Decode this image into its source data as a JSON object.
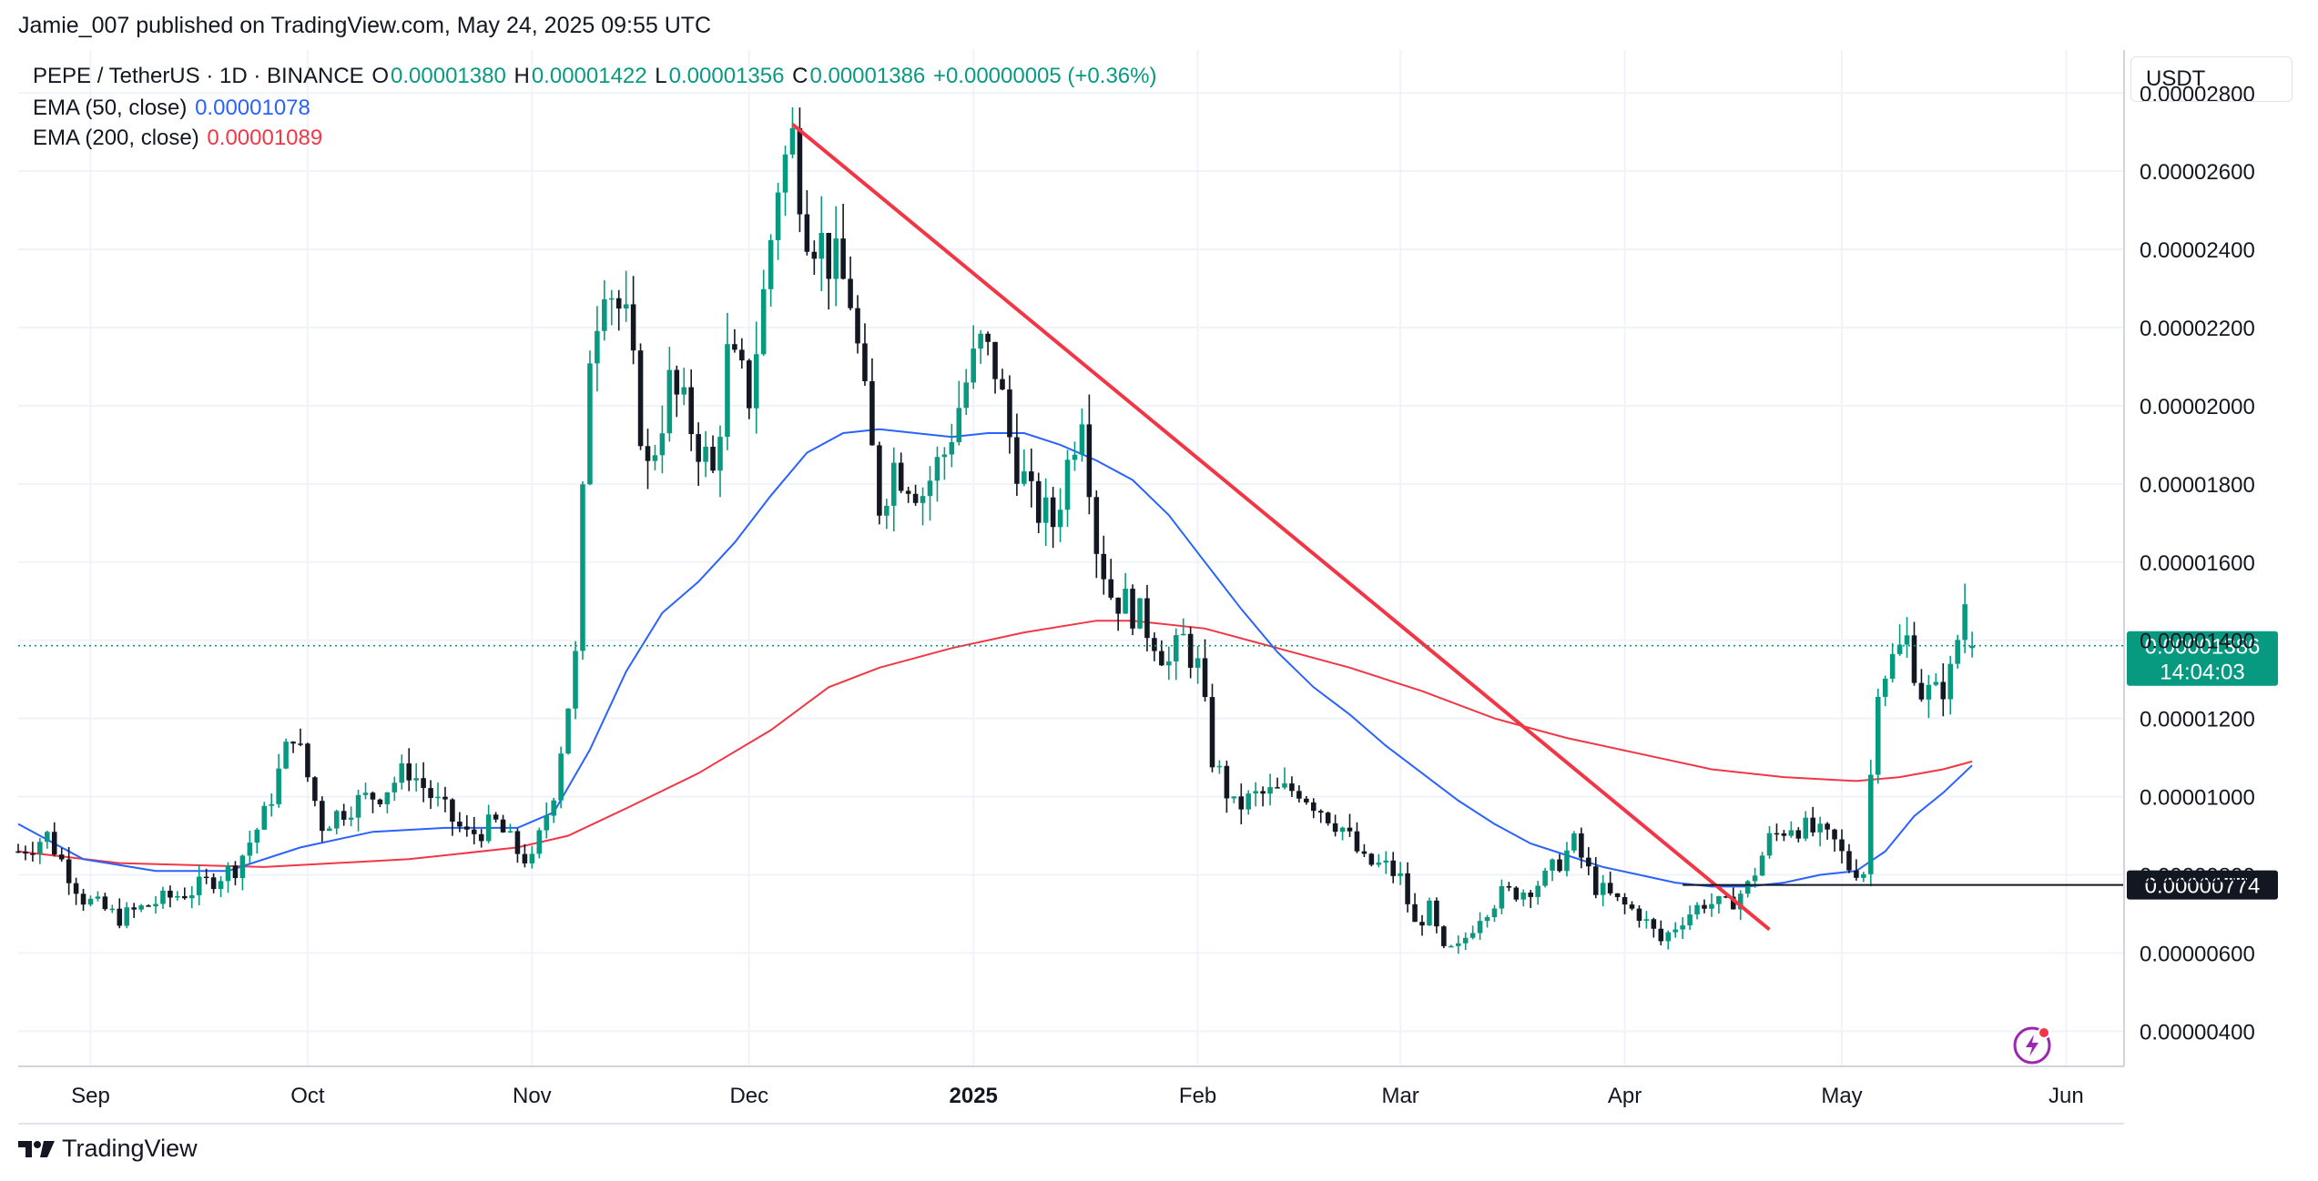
{
  "header": {
    "published": "Jamie_007 published on TradingView.com, May 24, 2025 09:55 UTC"
  },
  "legend": {
    "symbol": "PEPE / TetherUS · 1D · BINANCE",
    "o_label": "O",
    "o_value": "0.00001380",
    "h_label": "H",
    "h_value": "0.00001422",
    "l_label": "L",
    "l_value": "0.00001356",
    "c_label": "C",
    "c_value": "0.00001386",
    "change": "+0.00000005 (+0.36%)",
    "ema50_label": "EMA (50, close)",
    "ema50_value": "0.00001078",
    "ema200_label": "EMA (200, close)",
    "ema200_value": "0.00001089"
  },
  "currency": "USDT",
  "price_tag": {
    "value": "0.00001386",
    "countdown": "14:04:03"
  },
  "level_tag": {
    "value": "0.00000774"
  },
  "footer": {
    "brand": "TradingView"
  },
  "colors": {
    "up": "#089981",
    "down": "#131722",
    "ema50": "#2962ff",
    "ema200": "#f23645",
    "trendline": "#f23645",
    "grid": "#f0f3fa"
  },
  "chart_data": {
    "type": "candlestick",
    "symbol": "PEPE / TetherUS",
    "interval": "1D",
    "ylim": [
      3.1e-06,
      2.91e-05
    ],
    "y_ticks": [
      "0.00000400",
      "0.00000600",
      "0.00000800",
      "0.00001000",
      "0.00001200",
      "0.00001400",
      "0.00001600",
      "0.00001800",
      "0.00002000",
      "0.00002200",
      "0.00002400",
      "0.00002600",
      "0.00002800"
    ],
    "x_ticks": [
      {
        "label": "Sep",
        "day": 16
      },
      {
        "label": "Oct",
        "day": 46
      },
      {
        "label": "Nov",
        "day": 77
      },
      {
        "label": "Dec",
        "day": 107
      },
      {
        "label": "2025",
        "day": 138
      },
      {
        "label": "Feb",
        "day": 169
      },
      {
        "label": "Mar",
        "day": 197
      },
      {
        "label": "Apr",
        "day": 228
      },
      {
        "label": "May",
        "day": 258
      },
      {
        "label": "Jun",
        "day": 289
      }
    ],
    "x_range_days": [
      6,
      297
    ],
    "anchors": [
      [
        6,
        8.6e-06
      ],
      [
        10,
        9e-06
      ],
      [
        15,
        7.4e-06
      ],
      [
        20,
        6.9e-06
      ],
      [
        25,
        7.3e-06
      ],
      [
        30,
        7.6e-06
      ],
      [
        36,
        8.2e-06
      ],
      [
        40,
        9.5e-06
      ],
      [
        44,
        1.17e-05
      ],
      [
        48,
        9.3e-06
      ],
      [
        52,
        9.8e-06
      ],
      [
        56,
        1.01e-05
      ],
      [
        60,
        1.07e-05
      ],
      [
        64,
        9.8e-06
      ],
      [
        68,
        9e-06
      ],
      [
        72,
        9.3e-06
      ],
      [
        75,
        8.6e-06
      ],
      [
        77,
        8.3e-06
      ],
      [
        80,
        1.02e-05
      ],
      [
        83,
        1.35e-05
      ],
      [
        85,
        2.15e-05
      ],
      [
        87,
        2.35e-05
      ],
      [
        90,
        2.2e-05
      ],
      [
        93,
        1.83e-05
      ],
      [
        96,
        2.05e-05
      ],
      [
        99,
        1.95e-05
      ],
      [
        102,
        1.82e-05
      ],
      [
        104,
        2.12e-05
      ],
      [
        107,
        2.03e-05
      ],
      [
        109,
        2.28e-05
      ],
      [
        111,
        2.58e-05
      ],
      [
        113,
        2.68e-05
      ],
      [
        115,
        2.48e-05
      ],
      [
        118,
        2.38e-05
      ],
      [
        121,
        2.28e-05
      ],
      [
        123,
        2e-05
      ],
      [
        125,
        1.75e-05
      ],
      [
        127,
        1.85e-05
      ],
      [
        129,
        1.82e-05
      ],
      [
        131,
        1.78e-05
      ],
      [
        134,
        1.88e-05
      ],
      [
        137,
        2.06e-05
      ],
      [
        139,
        2.15e-05
      ],
      [
        141,
        2.1e-05
      ],
      [
        143,
        1.92e-05
      ],
      [
        146,
        1.75e-05
      ],
      [
        149,
        1.7e-05
      ],
      [
        151,
        1.85e-05
      ],
      [
        153,
        2.01e-05
      ],
      [
        155,
        1.65e-05
      ],
      [
        157,
        1.52e-05
      ],
      [
        160,
        1.48e-05
      ],
      [
        163,
        1.41e-05
      ],
      [
        165,
        1.34e-05
      ],
      [
        167,
        1.4e-05
      ],
      [
        169,
        1.33e-05
      ],
      [
        171,
        1.1e-05
      ],
      [
        174,
        9.7e-06
      ],
      [
        177,
        1e-05
      ],
      [
        180,
        1.01e-05
      ],
      [
        183,
        1.02e-05
      ],
      [
        186,
        9.7e-06
      ],
      [
        189,
        9.2e-06
      ],
      [
        192,
        8.3e-06
      ],
      [
        195,
        8.2e-06
      ],
      [
        197,
        7.9e-06
      ],
      [
        199,
        6.7e-06
      ],
      [
        201,
        7.1e-06
      ],
      [
        203,
        6e-06
      ],
      [
        205,
        6.1e-06
      ],
      [
        208,
        7e-06
      ],
      [
        211,
        7.5e-06
      ],
      [
        214,
        7.6e-06
      ],
      [
        217,
        7.9e-06
      ],
      [
        221,
        8.8e-06
      ],
      [
        224,
        7.7e-06
      ],
      [
        227,
        7.3e-06
      ],
      [
        230,
        7e-06
      ],
      [
        233,
        6.3e-06
      ],
      [
        236,
        6.9e-06
      ],
      [
        239,
        7.3e-06
      ],
      [
        242,
        7.2e-06
      ],
      [
        245,
        7.7e-06
      ],
      [
        248,
        8.9e-06
      ],
      [
        251,
        9.3e-06
      ],
      [
        254,
        9.1e-06
      ],
      [
        257,
        8.8e-06
      ],
      [
        259,
        8.2e-06
      ],
      [
        261,
        8.1e-06
      ],
      [
        263,
        1.3e-05
      ],
      [
        265,
        1.35e-05
      ],
      [
        267,
        1.4e-05
      ],
      [
        269,
        1.27e-05
      ],
      [
        271,
        1.26e-05
      ],
      [
        273,
        1.31e-05
      ],
      [
        275,
        1.5e-05
      ],
      [
        276,
        1.38e-05
      ]
    ],
    "ema50": [
      [
        6,
        9.3e-06
      ],
      [
        15,
        8.4e-06
      ],
      [
        25,
        8.1e-06
      ],
      [
        35,
        8.1e-06
      ],
      [
        45,
        8.7e-06
      ],
      [
        55,
        9.1e-06
      ],
      [
        65,
        9.2e-06
      ],
      [
        75,
        9.2e-06
      ],
      [
        80,
        9.6e-06
      ],
      [
        85,
        1.12e-05
      ],
      [
        90,
        1.32e-05
      ],
      [
        95,
        1.47e-05
      ],
      [
        100,
        1.55e-05
      ],
      [
        105,
        1.65e-05
      ],
      [
        110,
        1.77e-05
      ],
      [
        115,
        1.88e-05
      ],
      [
        120,
        1.93e-05
      ],
      [
        125,
        1.94e-05
      ],
      [
        130,
        1.93e-05
      ],
      [
        135,
        1.92e-05
      ],
      [
        140,
        1.93e-05
      ],
      [
        145,
        1.93e-05
      ],
      [
        150,
        1.9e-05
      ],
      [
        155,
        1.86e-05
      ],
      [
        160,
        1.81e-05
      ],
      [
        165,
        1.72e-05
      ],
      [
        170,
        1.6e-05
      ],
      [
        175,
        1.48e-05
      ],
      [
        180,
        1.37e-05
      ],
      [
        185,
        1.28e-05
      ],
      [
        190,
        1.21e-05
      ],
      [
        195,
        1.13e-05
      ],
      [
        200,
        1.06e-05
      ],
      [
        205,
        9.9e-06
      ],
      [
        210,
        9.3e-06
      ],
      [
        215,
        8.8e-06
      ],
      [
        220,
        8.5e-06
      ],
      [
        225,
        8.2e-06
      ],
      [
        230,
        8e-06
      ],
      [
        235,
        7.8e-06
      ],
      [
        240,
        7.7e-06
      ],
      [
        245,
        7.7e-06
      ],
      [
        250,
        7.8e-06
      ],
      [
        255,
        8e-06
      ],
      [
        260,
        8.1e-06
      ],
      [
        264,
        8.6e-06
      ],
      [
        268,
        9.5e-06
      ],
      [
        272,
        1.01e-05
      ],
      [
        276,
        1.08e-05
      ]
    ],
    "ema200": [
      [
        6,
        8.6e-06
      ],
      [
        20,
        8.3e-06
      ],
      [
        40,
        8.2e-06
      ],
      [
        60,
        8.4e-06
      ],
      [
        75,
        8.7e-06
      ],
      [
        82,
        9e-06
      ],
      [
        90,
        9.7e-06
      ],
      [
        100,
        1.06e-05
      ],
      [
        110,
        1.17e-05
      ],
      [
        118,
        1.28e-05
      ],
      [
        125,
        1.33e-05
      ],
      [
        135,
        1.38e-05
      ],
      [
        145,
        1.42e-05
      ],
      [
        155,
        1.45e-05
      ],
      [
        160,
        1.45e-05
      ],
      [
        170,
        1.43e-05
      ],
      [
        180,
        1.38e-05
      ],
      [
        190,
        1.33e-05
      ],
      [
        200,
        1.27e-05
      ],
      [
        210,
        1.2e-05
      ],
      [
        220,
        1.15e-05
      ],
      [
        230,
        1.11e-05
      ],
      [
        240,
        1.07e-05
      ],
      [
        250,
        1.05e-05
      ],
      [
        260,
        1.04e-05
      ],
      [
        266,
        1.05e-05
      ],
      [
        272,
        1.07e-05
      ],
      [
        276,
        1.09e-05
      ]
    ],
    "trendline": {
      "from": [
        113,
        2.72e-05
      ],
      "to": [
        248,
        6.6e-06
      ]
    },
    "horizontal_level": {
      "value": 7.74e-06,
      "from_day": 236
    },
    "last_close": 1.386e-05,
    "last": {
      "open": 1.38e-05,
      "high": 1.422e-05,
      "low": 1.356e-05,
      "close": 1.386e-05
    }
  }
}
